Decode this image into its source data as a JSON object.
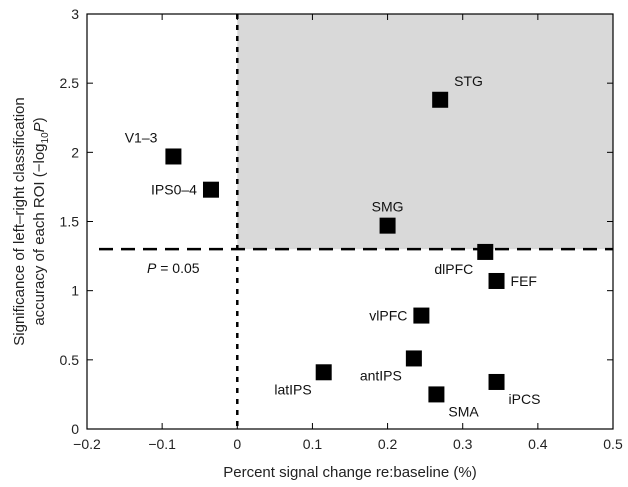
{
  "chart_data": {
    "type": "scatter",
    "xlabel": "Percent signal change re:baseline (%)",
    "ylabel_line1": "Significance of left–right classification",
    "ylabel_line2_prefix": "accuracy of each ROI (−log",
    "ylabel_line2_sub": "10",
    "ylabel_line2_var": "P",
    "ylabel_line2_suffix": ")",
    "xlim": [
      -0.2,
      0.5
    ],
    "ylim": [
      0,
      3
    ],
    "xticks": [
      -0.2,
      -0.1,
      0,
      0.1,
      0.2,
      0.3,
      0.4,
      0.5
    ],
    "xtick_labels": [
      "−0.2",
      "−0.1",
      "0",
      "0.1",
      "0.2",
      "0.3",
      "0.4",
      "0.5"
    ],
    "yticks": [
      0,
      0.5,
      1,
      1.5,
      2,
      2.5,
      3
    ],
    "ytick_labels": [
      "0",
      "0.5",
      "1",
      "1.5",
      "2",
      "2.5",
      "3"
    ],
    "threshold_y": 1.3,
    "threshold_label_var": "P",
    "threshold_label_rest": " = 0.05",
    "shaded_region": {
      "x": [
        0,
        0.5
      ],
      "y": [
        1.3,
        3
      ],
      "color": "#d9d9d9"
    },
    "marker_color": "#000000",
    "points": [
      {
        "label": "STG",
        "x": 0.27,
        "y": 2.38,
        "label_pos": "above-right"
      },
      {
        "label": "V1–3",
        "x": -0.085,
        "y": 1.97,
        "label_pos": "above-left"
      },
      {
        "label": "IPS0–4",
        "x": -0.035,
        "y": 1.73,
        "label_pos": "left"
      },
      {
        "label": "SMG",
        "x": 0.2,
        "y": 1.47,
        "label_pos": "above"
      },
      {
        "label": "dlPFC",
        "x": 0.33,
        "y": 1.28,
        "label_pos": "below-left"
      },
      {
        "label": "FEF",
        "x": 0.345,
        "y": 1.07,
        "label_pos": "right"
      },
      {
        "label": "vlPFC",
        "x": 0.245,
        "y": 0.82,
        "label_pos": "left"
      },
      {
        "label": "antIPS",
        "x": 0.235,
        "y": 0.51,
        "label_pos": "below-left"
      },
      {
        "label": "latIPS",
        "x": 0.115,
        "y": 0.41,
        "label_pos": "below-left"
      },
      {
        "label": "SMA",
        "x": 0.265,
        "y": 0.25,
        "label_pos": "below-right"
      },
      {
        "label": "iPCS",
        "x": 0.345,
        "y": 0.34,
        "label_pos": "below-right"
      }
    ]
  }
}
